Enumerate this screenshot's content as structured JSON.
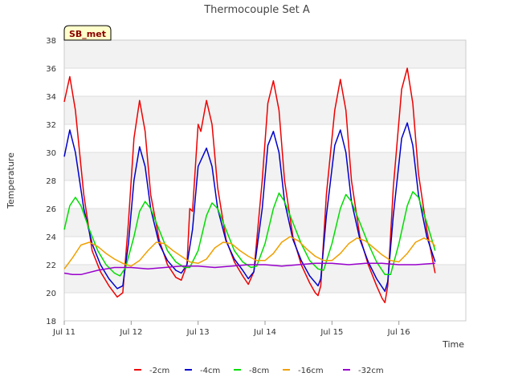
{
  "chart_data": {
    "type": "line",
    "title": "Thermocouple Set A",
    "xlabel": "Time",
    "ylabel": "Temperature",
    "badge": "SB_met",
    "ylim": [
      18,
      38
    ],
    "yticks": [
      18,
      20,
      22,
      24,
      26,
      28,
      30,
      32,
      34,
      36,
      38
    ],
    "xlim": [
      "2025-07-11",
      "2025-07-17"
    ],
    "xticks": [
      {
        "date": "2025-07-11",
        "label": "Jul 11"
      },
      {
        "date": "2025-07-12",
        "label": "Jul 12"
      },
      {
        "date": "2025-07-13",
        "label": "Jul 13"
      },
      {
        "date": "2025-07-14",
        "label": "Jul 14"
      },
      {
        "date": "2025-07-15",
        "label": "Jul 15"
      },
      {
        "date": "2025-07-16",
        "label": "Jul 16"
      }
    ],
    "grid": true,
    "legend_position": "bottom",
    "colors": {
      "plot_band": "#f2f2f2",
      "grid": "#dddddd",
      "badge_fill": "#ffffcc",
      "badge_text": "#8b0000"
    },
    "series": [
      {
        "name": "-2cm",
        "color": "#ee0000",
        "points": [
          [
            "2025-07-11 00:00",
            33.6
          ],
          [
            "2025-07-11 02:00",
            35.4
          ],
          [
            "2025-07-11 04:00",
            33.0
          ],
          [
            "2025-07-11 07:00",
            27.0
          ],
          [
            "2025-07-11 10:00",
            23.0
          ],
          [
            "2025-07-11 13:00",
            21.5
          ],
          [
            "2025-07-11 16:00",
            20.5
          ],
          [
            "2025-07-11 19:00",
            19.7
          ],
          [
            "2025-07-11 21:00",
            20.0
          ],
          [
            "2025-07-11 23:00",
            25.0
          ],
          [
            "2025-07-12 01:00",
            31.0
          ],
          [
            "2025-07-12 03:00",
            33.7
          ],
          [
            "2025-07-12 05:00",
            31.5
          ],
          [
            "2025-07-12 07:00",
            27.0
          ],
          [
            "2025-07-12 10:00",
            23.8
          ],
          [
            "2025-07-12 13:00",
            22.0
          ],
          [
            "2025-07-12 16:00",
            21.1
          ],
          [
            "2025-07-12 18:00",
            20.9
          ],
          [
            "2025-07-12 20:00",
            22.0
          ],
          [
            "2025-07-12 21:00",
            26.0
          ],
          [
            "2025-07-12 22:00",
            25.8
          ],
          [
            "2025-07-13 00:00",
            32.0
          ],
          [
            "2025-07-13 01:00",
            31.5
          ],
          [
            "2025-07-13 03:00",
            33.7
          ],
          [
            "2025-07-13 05:00",
            32.0
          ],
          [
            "2025-07-13 07:00",
            27.5
          ],
          [
            "2025-07-13 10:00",
            23.8
          ],
          [
            "2025-07-13 13:00",
            22.2
          ],
          [
            "2025-07-13 16:00",
            21.2
          ],
          [
            "2025-07-13 18:00",
            20.6
          ],
          [
            "2025-07-13 20:00",
            21.5
          ],
          [
            "2025-07-13 23:00",
            28.0
          ],
          [
            "2025-07-14 01:00",
            33.5
          ],
          [
            "2025-07-14 03:00",
            35.1
          ],
          [
            "2025-07-14 05:00",
            33.0
          ],
          [
            "2025-07-14 07:00",
            28.0
          ],
          [
            "2025-07-14 10:00",
            24.0
          ],
          [
            "2025-07-14 13:00",
            22.0
          ],
          [
            "2025-07-14 16:00",
            20.7
          ],
          [
            "2025-07-14 18:00",
            20.0
          ],
          [
            "2025-07-14 19:00",
            19.8
          ],
          [
            "2025-07-14 20:00",
            20.5
          ],
          [
            "2025-07-14 22:00",
            27.0
          ],
          [
            "2025-07-15 01:00",
            33.0
          ],
          [
            "2025-07-15 03:00",
            35.2
          ],
          [
            "2025-07-15 05:00",
            33.0
          ],
          [
            "2025-07-15 07:00",
            28.0
          ],
          [
            "2025-07-15 10:00",
            24.0
          ],
          [
            "2025-07-15 13:00",
            22.0
          ],
          [
            "2025-07-15 16:00",
            20.5
          ],
          [
            "2025-07-15 18:00",
            19.6
          ],
          [
            "2025-07-15 19:00",
            19.3
          ],
          [
            "2025-07-15 20:00",
            20.5
          ],
          [
            "2025-07-15 22:00",
            27.5
          ],
          [
            "2025-07-16 01:00",
            34.5
          ],
          [
            "2025-07-16 03:00",
            36.0
          ],
          [
            "2025-07-16 05:00",
            33.5
          ],
          [
            "2025-07-16 07:00",
            28.5
          ],
          [
            "2025-07-16 10:00",
            24.5
          ],
          [
            "2025-07-16 13:00",
            21.4
          ]
        ]
      },
      {
        "name": "-4cm",
        "color": "#0000cc",
        "points": [
          [
            "2025-07-11 00:00",
            29.7
          ],
          [
            "2025-07-11 02:00",
            31.6
          ],
          [
            "2025-07-11 04:00",
            30.0
          ],
          [
            "2025-07-11 07:00",
            26.0
          ],
          [
            "2025-07-11 10:00",
            23.5
          ],
          [
            "2025-07-11 13:00",
            22.0
          ],
          [
            "2025-07-11 16:00",
            21.0
          ],
          [
            "2025-07-11 19:00",
            20.3
          ],
          [
            "2025-07-11 21:00",
            20.5
          ],
          [
            "2025-07-11 23:00",
            23.5
          ],
          [
            "2025-07-12 01:00",
            28.0
          ],
          [
            "2025-07-12 03:00",
            30.4
          ],
          [
            "2025-07-12 05:00",
            29.0
          ],
          [
            "2025-07-12 07:00",
            26.0
          ],
          [
            "2025-07-12 10:00",
            23.5
          ],
          [
            "2025-07-12 13:00",
            22.3
          ],
          [
            "2025-07-12 16:00",
            21.6
          ],
          [
            "2025-07-12 18:00",
            21.4
          ],
          [
            "2025-07-12 20:00",
            22.0
          ],
          [
            "2025-07-12 22:00",
            24.5
          ],
          [
            "2025-07-13 00:00",
            29.0
          ],
          [
            "2025-07-13 03:00",
            30.3
          ],
          [
            "2025-07-13 05:00",
            29.0
          ],
          [
            "2025-07-13 07:00",
            26.0
          ],
          [
            "2025-07-13 10:00",
            23.7
          ],
          [
            "2025-07-13 13:00",
            22.4
          ],
          [
            "2025-07-13 16:00",
            21.6
          ],
          [
            "2025-07-13 18:00",
            21.0
          ],
          [
            "2025-07-13 20:00",
            21.5
          ],
          [
            "2025-07-13 23:00",
            26.0
          ],
          [
            "2025-07-14 01:00",
            30.5
          ],
          [
            "2025-07-14 03:00",
            31.5
          ],
          [
            "2025-07-14 05:00",
            30.0
          ],
          [
            "2025-07-14 07:00",
            26.5
          ],
          [
            "2025-07-14 10:00",
            23.8
          ],
          [
            "2025-07-14 13:00",
            22.3
          ],
          [
            "2025-07-14 16:00",
            21.2
          ],
          [
            "2025-07-14 19:00",
            20.5
          ],
          [
            "2025-07-14 20:00",
            21.0
          ],
          [
            "2025-07-14 22:00",
            25.5
          ],
          [
            "2025-07-15 01:00",
            30.5
          ],
          [
            "2025-07-15 03:00",
            31.6
          ],
          [
            "2025-07-15 05:00",
            30.0
          ],
          [
            "2025-07-15 07:00",
            26.5
          ],
          [
            "2025-07-15 10:00",
            23.8
          ],
          [
            "2025-07-15 13:00",
            22.2
          ],
          [
            "2025-07-15 16:00",
            21.0
          ],
          [
            "2025-07-15 19:00",
            20.1
          ],
          [
            "2025-07-15 20:00",
            20.8
          ],
          [
            "2025-07-15 22:00",
            25.5
          ],
          [
            "2025-07-16 01:00",
            31.0
          ],
          [
            "2025-07-16 03:00",
            32.1
          ],
          [
            "2025-07-16 05:00",
            30.5
          ],
          [
            "2025-07-16 07:00",
            27.0
          ],
          [
            "2025-07-16 10:00",
            24.0
          ],
          [
            "2025-07-16 13:00",
            22.2
          ]
        ]
      },
      {
        "name": "-8cm",
        "color": "#00dd00",
        "points": [
          [
            "2025-07-11 00:00",
            24.5
          ],
          [
            "2025-07-11 02:00",
            26.2
          ],
          [
            "2025-07-11 04:00",
            26.8
          ],
          [
            "2025-07-11 06:00",
            26.2
          ],
          [
            "2025-07-11 09:00",
            24.5
          ],
          [
            "2025-07-11 12:00",
            23.0
          ],
          [
            "2025-07-11 15:00",
            22.0
          ],
          [
            "2025-07-11 18:00",
            21.4
          ],
          [
            "2025-07-11 20:00",
            21.2
          ],
          [
            "2025-07-11 22:00",
            21.8
          ],
          [
            "2025-07-12 01:00",
            24.0
          ],
          [
            "2025-07-12 03:00",
            25.8
          ],
          [
            "2025-07-12 05:00",
            26.5
          ],
          [
            "2025-07-12 07:00",
            26.0
          ],
          [
            "2025-07-12 10:00",
            24.5
          ],
          [
            "2025-07-12 13:00",
            23.0
          ],
          [
            "2025-07-12 16:00",
            22.2
          ],
          [
            "2025-07-12 19:00",
            21.8
          ],
          [
            "2025-07-12 21:00",
            21.8
          ],
          [
            "2025-07-13 00:00",
            23.0
          ],
          [
            "2025-07-13 03:00",
            25.5
          ],
          [
            "2025-07-13 05:00",
            26.4
          ],
          [
            "2025-07-13 07:00",
            26.0
          ],
          [
            "2025-07-13 10:00",
            24.5
          ],
          [
            "2025-07-13 13:00",
            23.0
          ],
          [
            "2025-07-13 16:00",
            22.2
          ],
          [
            "2025-07-13 19:00",
            21.8
          ],
          [
            "2025-07-13 21:00",
            21.9
          ],
          [
            "2025-07-14 00:00",
            23.5
          ],
          [
            "2025-07-14 03:00",
            26.0
          ],
          [
            "2025-07-14 05:00",
            27.1
          ],
          [
            "2025-07-14 07:00",
            26.5
          ],
          [
            "2025-07-14 10:00",
            25.0
          ],
          [
            "2025-07-14 13:00",
            23.5
          ],
          [
            "2025-07-14 16:00",
            22.3
          ],
          [
            "2025-07-14 19:00",
            21.7
          ],
          [
            "2025-07-14 21:00",
            21.6
          ],
          [
            "2025-07-15 00:00",
            23.5
          ],
          [
            "2025-07-15 03:00",
            26.0
          ],
          [
            "2025-07-15 05:00",
            27.0
          ],
          [
            "2025-07-15 07:00",
            26.5
          ],
          [
            "2025-07-15 10:00",
            25.0
          ],
          [
            "2025-07-15 13:00",
            23.5
          ],
          [
            "2025-07-15 16:00",
            22.2
          ],
          [
            "2025-07-15 19:00",
            21.3
          ],
          [
            "2025-07-15 21:00",
            21.3
          ],
          [
            "2025-07-16 00:00",
            23.5
          ],
          [
            "2025-07-16 03:00",
            26.2
          ],
          [
            "2025-07-16 05:00",
            27.2
          ],
          [
            "2025-07-16 07:00",
            26.8
          ],
          [
            "2025-07-16 10:00",
            25.0
          ],
          [
            "2025-07-16 13:00",
            23.0
          ]
        ]
      },
      {
        "name": "-16cm",
        "color": "#f0a000",
        "points": [
          [
            "2025-07-11 00:00",
            21.7
          ],
          [
            "2025-07-11 03:00",
            22.5
          ],
          [
            "2025-07-11 06:00",
            23.4
          ],
          [
            "2025-07-11 09:00",
            23.6
          ],
          [
            "2025-07-11 12:00",
            23.3
          ],
          [
            "2025-07-11 15:00",
            22.8
          ],
          [
            "2025-07-11 18:00",
            22.4
          ],
          [
            "2025-07-11 21:00",
            22.1
          ],
          [
            "2025-07-12 00:00",
            21.9
          ],
          [
            "2025-07-12 03:00",
            22.3
          ],
          [
            "2025-07-12 06:00",
            23.0
          ],
          [
            "2025-07-12 09:00",
            23.6
          ],
          [
            "2025-07-12 12:00",
            23.5
          ],
          [
            "2025-07-12 15:00",
            23.0
          ],
          [
            "2025-07-12 18:00",
            22.6
          ],
          [
            "2025-07-12 21:00",
            22.2
          ],
          [
            "2025-07-13 00:00",
            22.1
          ],
          [
            "2025-07-13 03:00",
            22.4
          ],
          [
            "2025-07-13 06:00",
            23.2
          ],
          [
            "2025-07-13 09:00",
            23.6
          ],
          [
            "2025-07-13 12:00",
            23.5
          ],
          [
            "2025-07-13 15:00",
            23.0
          ],
          [
            "2025-07-13 18:00",
            22.6
          ],
          [
            "2025-07-13 21:00",
            22.3
          ],
          [
            "2025-07-14 00:00",
            22.3
          ],
          [
            "2025-07-14 03:00",
            22.8
          ],
          [
            "2025-07-14 06:00",
            23.6
          ],
          [
            "2025-07-14 09:00",
            24.0
          ],
          [
            "2025-07-14 12:00",
            23.7
          ],
          [
            "2025-07-14 15:00",
            23.1
          ],
          [
            "2025-07-14 18:00",
            22.6
          ],
          [
            "2025-07-14 21:00",
            22.3
          ],
          [
            "2025-07-15 00:00",
            22.3
          ],
          [
            "2025-07-15 03:00",
            22.8
          ],
          [
            "2025-07-15 06:00",
            23.5
          ],
          [
            "2025-07-15 09:00",
            23.9
          ],
          [
            "2025-07-15 12:00",
            23.7
          ],
          [
            "2025-07-15 15:00",
            23.2
          ],
          [
            "2025-07-15 18:00",
            22.7
          ],
          [
            "2025-07-15 21:00",
            22.3
          ],
          [
            "2025-07-16 00:00",
            22.2
          ],
          [
            "2025-07-16 03:00",
            22.8
          ],
          [
            "2025-07-16 06:00",
            23.6
          ],
          [
            "2025-07-16 09:00",
            23.9
          ],
          [
            "2025-07-16 12:00",
            23.6
          ],
          [
            "2025-07-16 13:00",
            23.3
          ]
        ]
      },
      {
        "name": "-32cm",
        "color": "#9900cc",
        "points": [
          [
            "2025-07-11 00:00",
            21.4
          ],
          [
            "2025-07-11 03:00",
            21.3
          ],
          [
            "2025-07-11 06:00",
            21.3
          ],
          [
            "2025-07-11 12:00",
            21.6
          ],
          [
            "2025-07-11 18:00",
            21.8
          ],
          [
            "2025-07-12 00:00",
            21.8
          ],
          [
            "2025-07-12 06:00",
            21.7
          ],
          [
            "2025-07-12 12:00",
            21.8
          ],
          [
            "2025-07-12 18:00",
            21.9
          ],
          [
            "2025-07-13 00:00",
            21.9
          ],
          [
            "2025-07-13 06:00",
            21.8
          ],
          [
            "2025-07-13 12:00",
            21.9
          ],
          [
            "2025-07-13 18:00",
            22.0
          ],
          [
            "2025-07-14 00:00",
            22.0
          ],
          [
            "2025-07-14 06:00",
            21.9
          ],
          [
            "2025-07-14 12:00",
            22.0
          ],
          [
            "2025-07-14 18:00",
            22.1
          ],
          [
            "2025-07-15 00:00",
            22.1
          ],
          [
            "2025-07-15 06:00",
            22.0
          ],
          [
            "2025-07-15 12:00",
            22.1
          ],
          [
            "2025-07-15 18:00",
            22.1
          ],
          [
            "2025-07-16 00:00",
            22.0
          ],
          [
            "2025-07-16 06:00",
            22.0
          ],
          [
            "2025-07-16 13:00",
            22.1
          ]
        ]
      }
    ]
  }
}
